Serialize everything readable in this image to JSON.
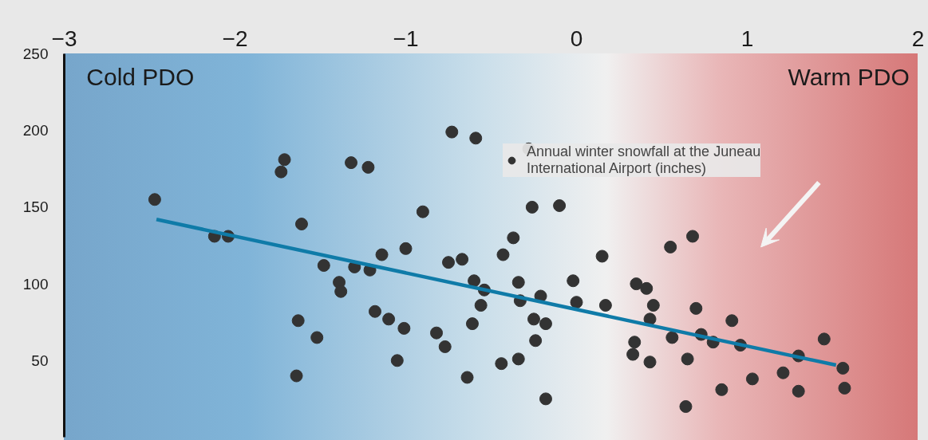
{
  "chart_data": {
    "type": "scatter",
    "xlim": [
      -3,
      2
    ],
    "ylim": [
      0,
      250
    ],
    "xticks": [
      -3,
      -2,
      -1,
      0,
      1,
      2
    ],
    "yticks": [
      50,
      100,
      150,
      200,
      250
    ],
    "legend": "top right",
    "marker": "circle",
    "annotations": [
      "Cold PDO",
      "Warm PDO"
    ],
    "series": [
      {
        "name": "Annual winter snowfall at the Juneau International Airport (inches)",
        "color": "#333333",
        "x": [
          -2.47,
          -2.12,
          -2.04,
          -1.71,
          -1.73,
          -1.61,
          -1.48,
          -1.39,
          -1.38,
          -1.63,
          -1.52,
          -1.64,
          -1.32,
          -1.22,
          -1.3,
          -1.21,
          -1.14,
          -1.18,
          -1.1,
          -1.01,
          -1.0,
          -1.05,
          -0.9,
          -0.82,
          -0.77,
          -0.75,
          -0.67,
          -0.73,
          -0.59,
          -0.64,
          -0.6,
          -0.54,
          -0.56,
          -0.61,
          -0.44,
          -0.43,
          -0.37,
          -0.34,
          -0.33,
          -0.34,
          -0.28,
          -0.26,
          -0.25,
          -0.24,
          -0.21,
          -0.18,
          -0.18,
          -0.1,
          -0.02,
          0.0,
          0.15,
          0.17,
          0.35,
          0.41,
          0.45,
          0.43,
          0.34,
          0.33,
          0.43,
          0.55,
          0.68,
          0.56,
          0.65,
          0.64,
          0.7,
          0.73,
          0.8,
          0.85,
          0.91,
          0.96,
          1.03,
          1.21,
          1.3,
          1.3,
          1.45,
          1.56,
          1.57
        ],
        "values": [
          155,
          131,
          131,
          181,
          173,
          139,
          112,
          101,
          95,
          76,
          65,
          40,
          179,
          176,
          111,
          109,
          119,
          82,
          77,
          71,
          123,
          50,
          147,
          68,
          59,
          114,
          116,
          199,
          195,
          39,
          102,
          96,
          86,
          74,
          48,
          119,
          130,
          101,
          89,
          51,
          188,
          150,
          77,
          63,
          92,
          74,
          25,
          151,
          102,
          88,
          118,
          86,
          100,
          97,
          86,
          77,
          62,
          54,
          49,
          124,
          131,
          65,
          51,
          20,
          84,
          67,
          62,
          31,
          76,
          60,
          38,
          42,
          53,
          30,
          64,
          45,
          32
        ]
      },
      {
        "type": "line",
        "marker": "none",
        "color": "#0f7ba8",
        "x": [
          -2.46,
          1.52
        ],
        "values": [
          142,
          47
        ]
      }
    ]
  }
}
